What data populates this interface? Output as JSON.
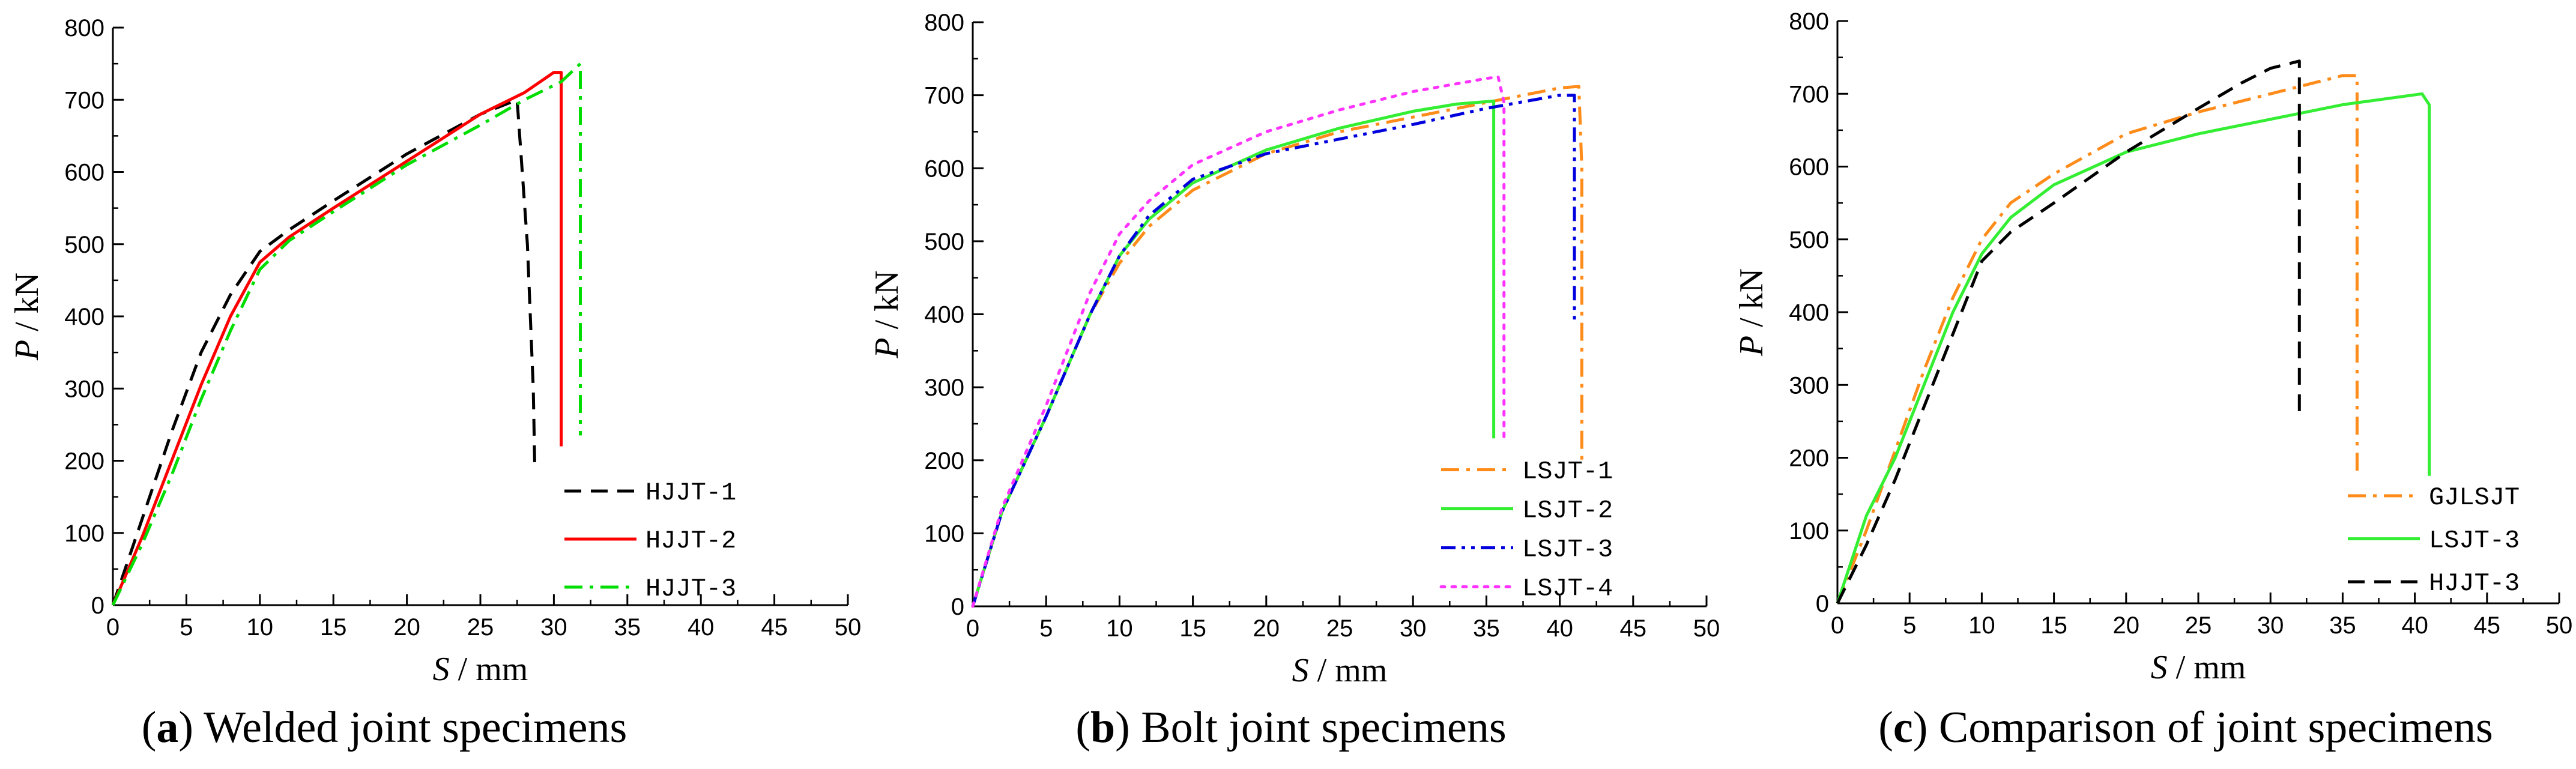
{
  "chart_data": [
    {
      "type": "line",
      "panel": "a",
      "caption_letter": "a",
      "caption_text": "Welded joint specimens",
      "xlabel": "S",
      "xunit": "/ mm",
      "ylabel": "P",
      "yunit": "/ kN",
      "xlim": [
        0,
        50
      ],
      "ylim": [
        0,
        800
      ],
      "xticks": [
        0,
        5,
        10,
        15,
        20,
        25,
        30,
        35,
        40,
        45,
        50
      ],
      "yticks": [
        0,
        100,
        200,
        300,
        400,
        500,
        600,
        700,
        800
      ],
      "legend_position": "bottom-right",
      "series": [
        {
          "name": "HJJT-1",
          "color": "#000000",
          "dash": "dash",
          "x": [
            0,
            2,
            4,
            6,
            8,
            10,
            12,
            15,
            20,
            25,
            27.5,
            28.2,
            28.6,
            28.7
          ],
          "y": [
            0,
            120,
            240,
            350,
            430,
            490,
            520,
            560,
            625,
            680,
            700,
            500,
            300,
            190
          ]
        },
        {
          "name": "HJJT-2",
          "color": "#ff0000",
          "dash": "solid",
          "x": [
            0,
            2,
            4,
            6,
            8,
            10,
            12,
            15,
            20,
            25,
            28,
            30,
            30.5,
            30.5
          ],
          "y": [
            0,
            95,
            200,
            305,
            400,
            475,
            510,
            550,
            615,
            680,
            710,
            738,
            738,
            220
          ]
        },
        {
          "name": "HJJT-3",
          "color": "#00dd00",
          "dash": "dashdot",
          "x": [
            0,
            2,
            4,
            6,
            8,
            10,
            12,
            15,
            20,
            25,
            28,
            30.5,
            31.8,
            31.8
          ],
          "y": [
            0,
            85,
            180,
            285,
            380,
            465,
            505,
            545,
            610,
            665,
            700,
            725,
            750,
            235
          ]
        }
      ]
    },
    {
      "type": "line",
      "panel": "b",
      "caption_letter": "b",
      "caption_text": "Bolt joint specimens",
      "xlabel": "S",
      "xunit": "/ mm",
      "ylabel": "P",
      "yunit": "/ kN",
      "xlim": [
        0,
        50
      ],
      "ylim": [
        0,
        800
      ],
      "xticks": [
        0,
        5,
        10,
        15,
        20,
        25,
        30,
        35,
        40,
        45,
        50
      ],
      "yticks": [
        0,
        100,
        200,
        300,
        400,
        500,
        600,
        700,
        800
      ],
      "legend_position": "bottom-right",
      "series": [
        {
          "name": "LSJT-1",
          "color": "#ff8c1a",
          "dash": "dashdot",
          "x": [
            0,
            2,
            5,
            8,
            10,
            12,
            15,
            20,
            25,
            30,
            35,
            40,
            41.3,
            41.5,
            41.5
          ],
          "y": [
            0,
            130,
            260,
            400,
            470,
            520,
            570,
            620,
            650,
            670,
            690,
            710,
            712,
            600,
            200
          ]
        },
        {
          "name": "LSJT-2",
          "color": "#33ee33",
          "dash": "solid",
          "x": [
            0,
            2,
            5,
            8,
            10,
            12,
            15,
            20,
            25,
            30,
            33,
            35.5,
            35.5
          ],
          "y": [
            0,
            130,
            260,
            400,
            480,
            530,
            580,
            625,
            655,
            678,
            688,
            692,
            230
          ]
        },
        {
          "name": "LSJT-3",
          "color": "#0000dd",
          "dash": "dashdotdot",
          "x": [
            0,
            2,
            5,
            8,
            10,
            12,
            15,
            20,
            25,
            30,
            35,
            40,
            41,
            41
          ],
          "y": [
            0,
            130,
            260,
            400,
            480,
            535,
            585,
            620,
            640,
            660,
            682,
            700,
            700,
            390
          ]
        },
        {
          "name": "LSJT-4",
          "color": "#ff33ff",
          "dash": "dot",
          "x": [
            0,
            2,
            5,
            8,
            10,
            12,
            15,
            20,
            25,
            30,
            35,
            35.8,
            36.2,
            36.2
          ],
          "y": [
            0,
            135,
            275,
            430,
            510,
            555,
            605,
            650,
            680,
            705,
            723,
            725,
            690,
            230
          ]
        }
      ]
    },
    {
      "type": "line",
      "panel": "c",
      "caption_letter": "c",
      "caption_text": "Comparison of joint specimens",
      "xlabel": "S",
      "xunit": "/ mm",
      "ylabel": "P",
      "yunit": "/ kN",
      "xlim": [
        0,
        50
      ],
      "ylim": [
        0,
        800
      ],
      "xticks": [
        0,
        5,
        10,
        15,
        20,
        25,
        30,
        35,
        40,
        45,
        50
      ],
      "yticks": [
        0,
        100,
        200,
        300,
        400,
        500,
        600,
        700,
        800
      ],
      "legend_position": "bottom-right",
      "series": [
        {
          "name": "GJLSJT",
          "color": "#ff8c1a",
          "dash": "dashdot",
          "x": [
            0,
            2,
            4,
            6,
            8,
            10,
            12,
            15,
            20,
            25,
            30,
            35,
            36,
            36
          ],
          "y": [
            0,
            100,
            210,
            320,
            420,
            500,
            550,
            590,
            645,
            675,
            700,
            725,
            725,
            180
          ]
        },
        {
          "name": "LSJT-3",
          "color": "#33ee33",
          "dash": "solid",
          "x": [
            0,
            2,
            4,
            6,
            8,
            10,
            12,
            15,
            20,
            25,
            30,
            35,
            40.5,
            41,
            41
          ],
          "y": [
            0,
            120,
            200,
            300,
            400,
            480,
            530,
            575,
            620,
            645,
            665,
            685,
            700,
            685,
            175
          ]
        },
        {
          "name": "HJJT-3",
          "color": "#000000",
          "dash": "dash",
          "x": [
            0,
            2,
            4,
            6,
            8,
            10,
            12,
            15,
            20,
            25,
            28,
            30,
            32,
            32
          ],
          "y": [
            0,
            80,
            170,
            270,
            370,
            470,
            510,
            550,
            620,
            680,
            715,
            735,
            745,
            255
          ]
        }
      ]
    }
  ]
}
